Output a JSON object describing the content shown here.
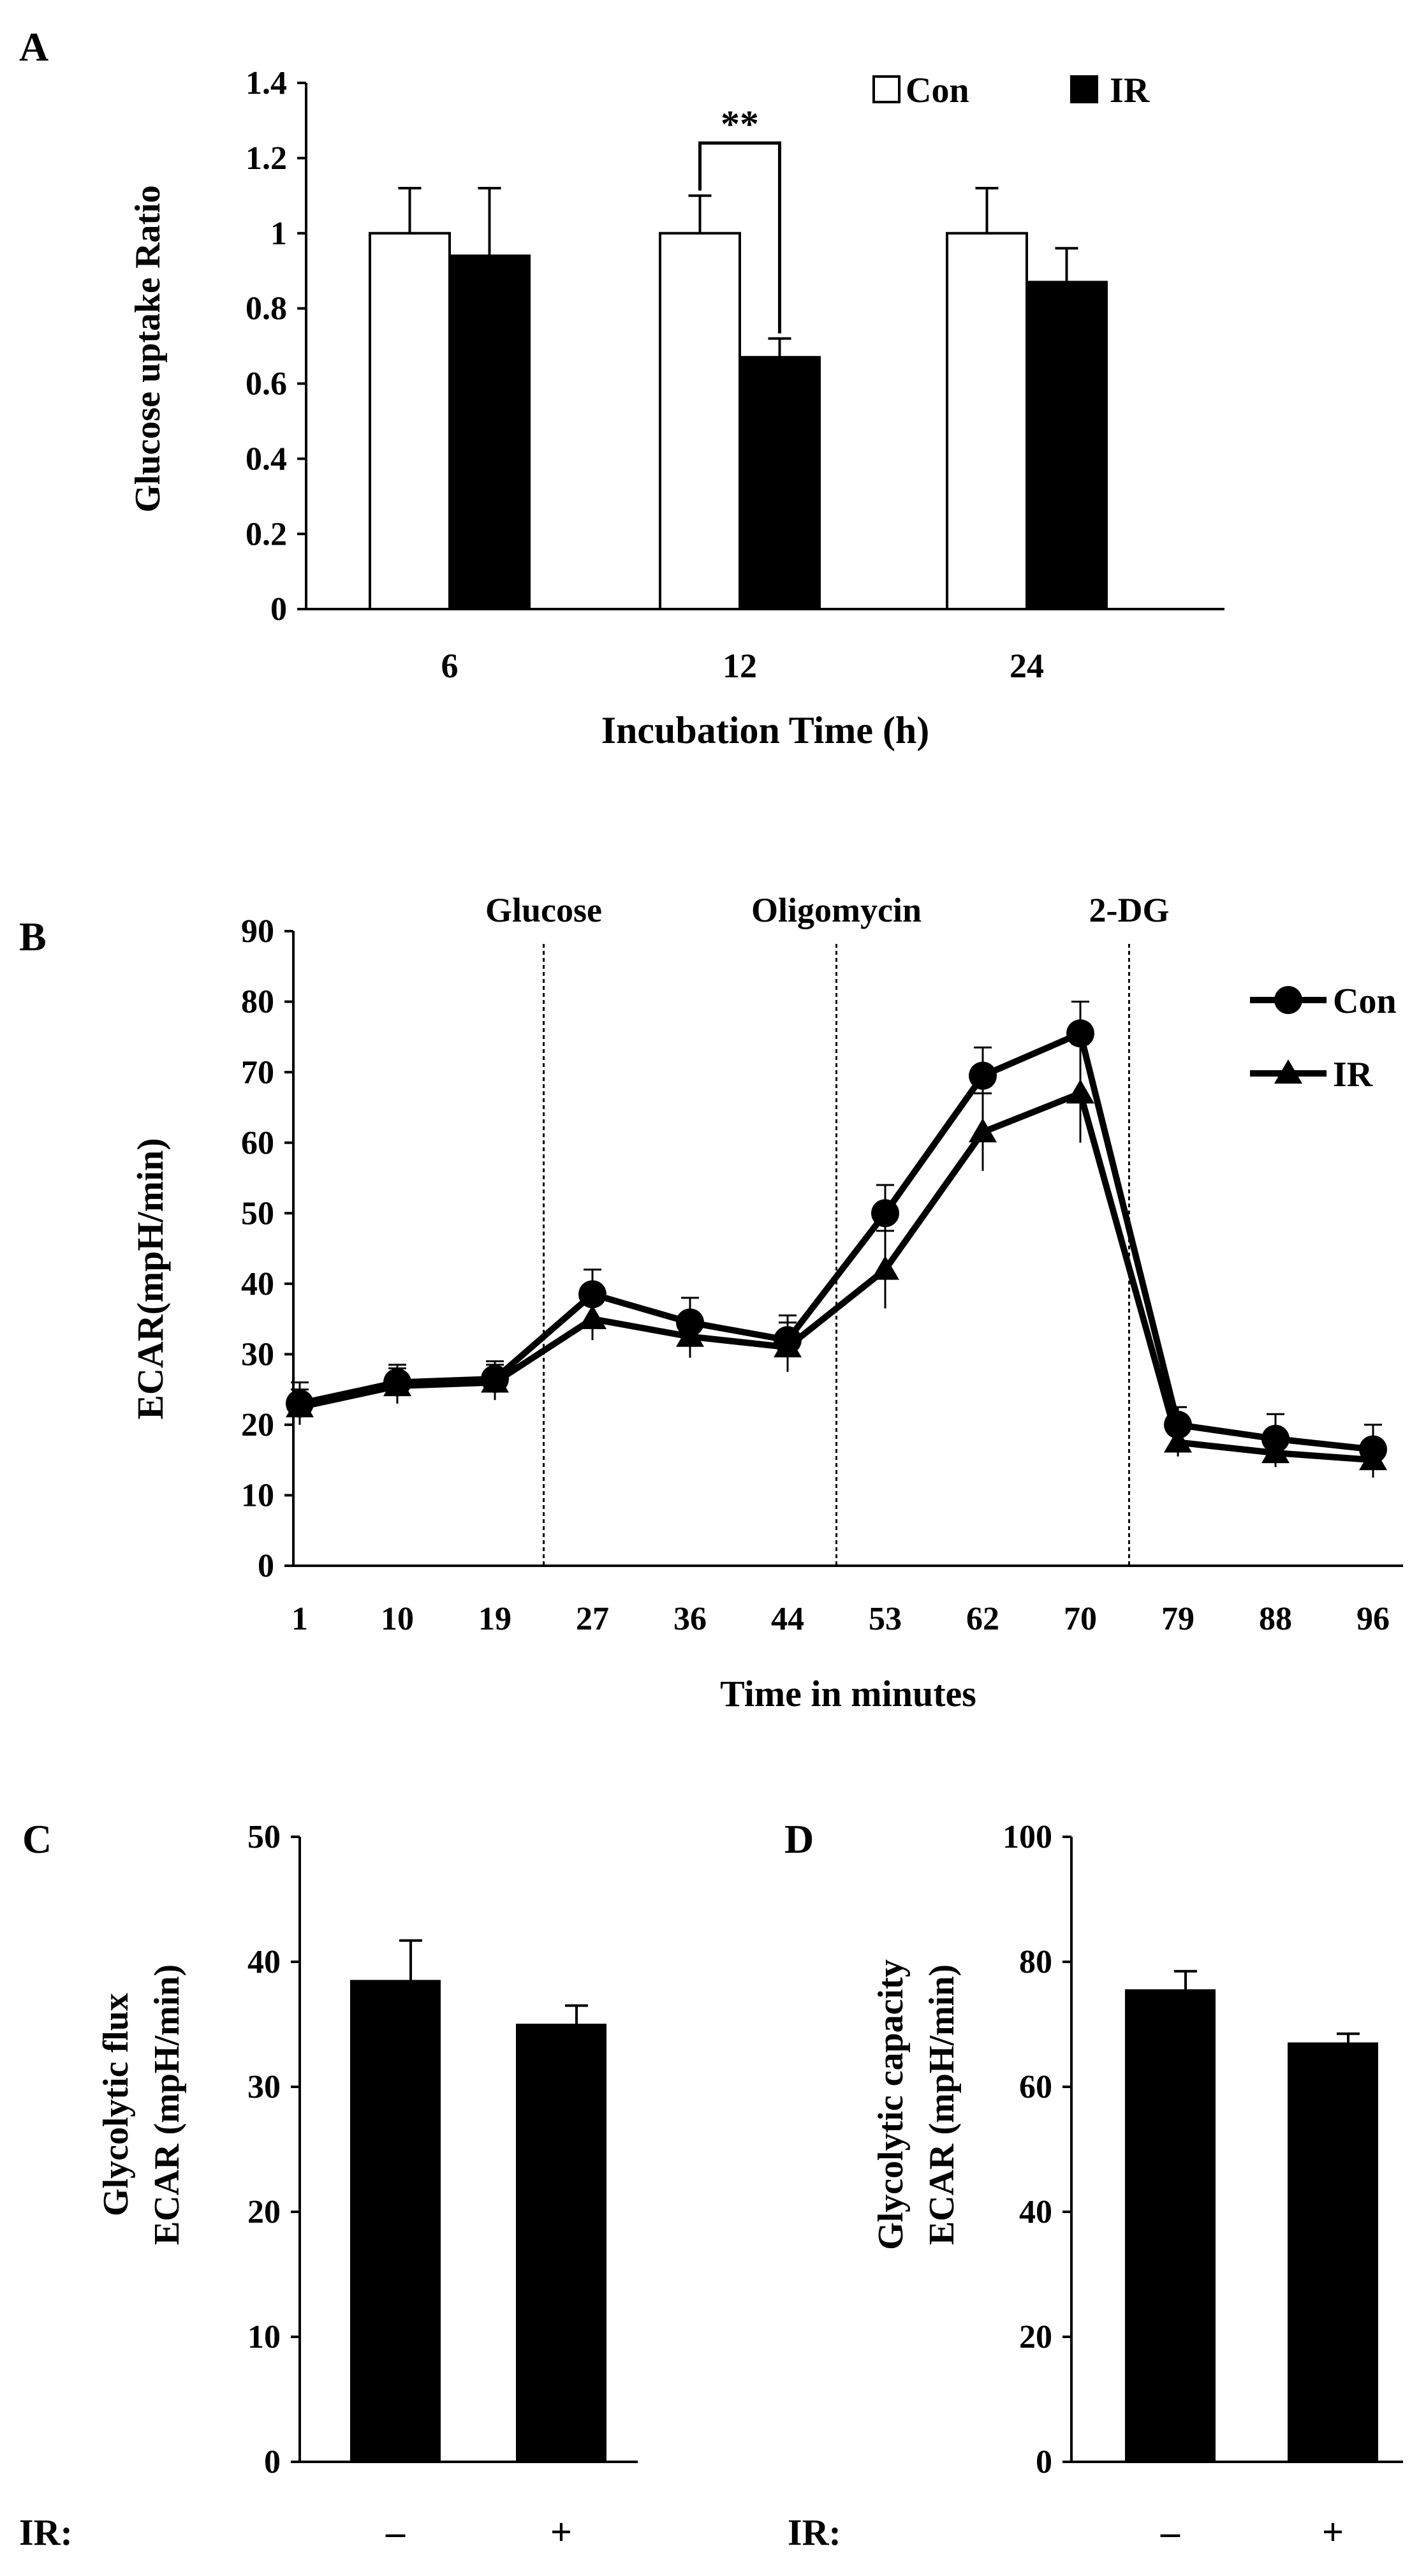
{
  "chart_data": [
    {
      "panel": "A",
      "type": "bar",
      "ylabel": "Glucose uptake Ratio",
      "xlabel": "Incubation Time (h)",
      "ylim": [
        0,
        1.4
      ],
      "yticks": [
        "0",
        "0.2",
        "0.4",
        "0.6",
        "0.8",
        "1",
        "1.2",
        "1.4"
      ],
      "categories": [
        "6",
        "12",
        "24"
      ],
      "series": [
        {
          "name": "Con",
          "values": [
            1.0,
            1.0,
            1.0
          ],
          "errors": [
            0.12,
            0.1,
            0.12
          ],
          "color": "#ffffff"
        },
        {
          "name": "IR",
          "values": [
            0.94,
            0.67,
            0.87
          ],
          "errors": [
            0.18,
            0.05,
            0.09
          ],
          "color": "#000000"
        }
      ],
      "legend": [
        "Con",
        "IR"
      ],
      "annotation": {
        "text": "**",
        "category": "12"
      }
    },
    {
      "panel": "B",
      "type": "line",
      "ylabel": "ECAR(mpH/min)",
      "xlabel": "Time in minutes",
      "ylim": [
        0,
        90
      ],
      "yticks": [
        "0",
        "10",
        "20",
        "30",
        "40",
        "50",
        "60",
        "70",
        "80",
        "90"
      ],
      "x": [
        "1",
        "10",
        "19",
        "27",
        "36",
        "44",
        "53",
        "62",
        "70",
        "79",
        "88",
        "96"
      ],
      "series": [
        {
          "name": "Con",
          "marker": "circle",
          "values": [
            23,
            26,
            26.5,
            38.5,
            34.5,
            32,
            50,
            69.5,
            75.5,
            20,
            18,
            16.5
          ],
          "errors": [
            3,
            2.5,
            2.5,
            3.5,
            3.5,
            3.5,
            4,
            4,
            4.5,
            2.5,
            3.5,
            3.5
          ]
        },
        {
          "name": "IR",
          "marker": "triangle",
          "values": [
            22.5,
            25.5,
            26,
            35,
            32.5,
            31,
            42,
            61.5,
            67,
            17.5,
            16,
            15
          ],
          "errors": [
            2.5,
            2.5,
            2.5,
            3,
            3,
            3.5,
            5.5,
            5.5,
            7,
            2,
            2,
            2.5
          ]
        }
      ],
      "legend": [
        "Con",
        "IR"
      ],
      "events": [
        {
          "label": "Glucose",
          "after_index": 2
        },
        {
          "label": "Oligomycin",
          "after_index": 5
        },
        {
          "label": "2-DG",
          "after_index": 8
        }
      ]
    },
    {
      "panel": "C",
      "type": "bar",
      "ylabel_lines": [
        "Glycolytic flux",
        "ECAR (mpH/min)"
      ],
      "ylim": [
        0,
        50
      ],
      "yticks": [
        "0",
        "10",
        "20",
        "30",
        "40",
        "50"
      ],
      "row_label": "IR:",
      "categories": [
        "–",
        "+"
      ],
      "values": [
        38.5,
        35
      ],
      "errors": [
        3.2,
        1.5
      ]
    },
    {
      "panel": "D",
      "type": "bar",
      "ylabel_lines": [
        "Glycolytic capacity",
        "ECAR (mpH/min)"
      ],
      "ylim": [
        0,
        100
      ],
      "yticks": [
        "0",
        "20",
        "40",
        "60",
        "80",
        "100"
      ],
      "row_label": "IR:",
      "categories": [
        "–",
        "+"
      ],
      "values": [
        75.5,
        67
      ],
      "errors": [
        3,
        1.5
      ]
    }
  ]
}
